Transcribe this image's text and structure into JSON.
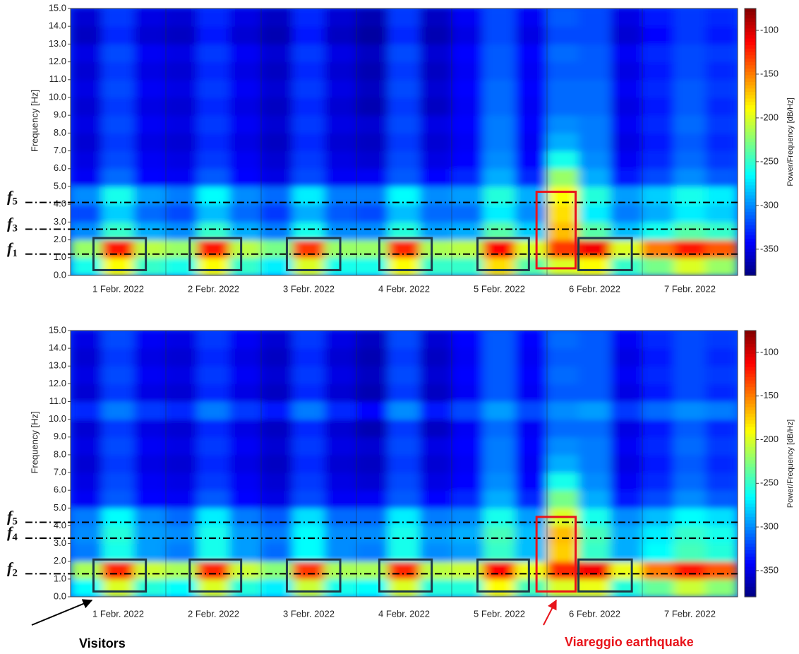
{
  "chart_data": [
    {
      "type": "heatmap",
      "colormap": "jet",
      "categories": [
        "1 Febr. 2022",
        "2 Febr. 2022",
        "3 Febr. 2022",
        "4 Febr. 2022",
        "5 Febr. 2022",
        "6 Febr. 2022",
        "7 Febr. 2022"
      ],
      "xlim": [
        0,
        7
      ],
      "ylabel": "Frequency [Hz]",
      "ylim": [
        0,
        15
      ],
      "yticks": [
        {
          "value": 0,
          "label": "0.0"
        },
        {
          "value": 1,
          "label": "1.0"
        },
        {
          "value": 2,
          "label": "2.0"
        },
        {
          "value": 3,
          "label": "3.0"
        },
        {
          "value": 4,
          "label": "4.0"
        },
        {
          "value": 5,
          "label": "5.0"
        },
        {
          "value": 6,
          "label": "6.0"
        },
        {
          "value": 7,
          "label": "7.0"
        },
        {
          "value": 8,
          "label": "8.0"
        },
        {
          "value": 9,
          "label": "9.0"
        },
        {
          "value": 10,
          "label": "10.0"
        },
        {
          "value": 11,
          "label": "11.0"
        },
        {
          "value": 12,
          "label": "12.0"
        },
        {
          "value": 13,
          "label": "13.0"
        },
        {
          "value": 14,
          "label": "14.0"
        },
        {
          "value": 15,
          "label": "15.0"
        }
      ],
      "colorbar_label": "Power/Frequency [dB/Hz]",
      "clim": [
        -380,
        -75
      ],
      "cticks": [
        -100,
        -150,
        -200,
        -250,
        -300,
        -350
      ],
      "z": [
        [
          -260,
          -190,
          -250,
          -260,
          -190,
          -250,
          -270,
          -200,
          -260,
          -260,
          -190,
          -250,
          -250,
          -180,
          -240,
          -200,
          -190,
          -250,
          -230,
          -200,
          -220
        ],
        [
          -220,
          -120,
          -210,
          -220,
          -120,
          -210,
          -230,
          -130,
          -220,
          -220,
          -125,
          -215,
          -210,
          -115,
          -200,
          -130,
          -110,
          -200,
          -150,
          -120,
          -140
        ],
        [
          -300,
          -250,
          -290,
          -300,
          -250,
          -290,
          -305,
          -260,
          -300,
          -300,
          -255,
          -295,
          -290,
          -240,
          -280,
          -170,
          -240,
          -285,
          -260,
          -240,
          -250
        ],
        [
          -320,
          -280,
          -310,
          -320,
          -285,
          -310,
          -325,
          -290,
          -315,
          -320,
          -285,
          -310,
          -310,
          -270,
          -300,
          -180,
          -270,
          -305,
          -290,
          -270,
          -280
        ],
        [
          -300,
          -260,
          -295,
          -305,
          -265,
          -300,
          -310,
          -270,
          -305,
          -305,
          -265,
          -300,
          -295,
          -255,
          -290,
          -190,
          -255,
          -295,
          -280,
          -260,
          -270
        ],
        [
          -345,
          -310,
          -340,
          -345,
          -315,
          -340,
          -350,
          -320,
          -345,
          -345,
          -315,
          -340,
          -330,
          -290,
          -330,
          -220,
          -290,
          -335,
          -320,
          -300,
          -315
        ],
        [
          -350,
          -320,
          -345,
          -350,
          -325,
          -345,
          -355,
          -325,
          -350,
          -355,
          -320,
          -350,
          -340,
          -300,
          -340,
          -260,
          -300,
          -345,
          -330,
          -310,
          -325
        ],
        [
          -355,
          -325,
          -350,
          -355,
          -330,
          -350,
          -360,
          -330,
          -355,
          -360,
          -325,
          -355,
          -345,
          -305,
          -345,
          -290,
          -305,
          -350,
          -335,
          -315,
          -330
        ],
        [
          -350,
          -320,
          -345,
          -350,
          -325,
          -345,
          -355,
          -325,
          -350,
          -355,
          -320,
          -350,
          -340,
          -305,
          -340,
          -300,
          -305,
          -345,
          -330,
          -310,
          -325
        ],
        [
          -355,
          -325,
          -350,
          -355,
          -330,
          -350,
          -360,
          -330,
          -355,
          -365,
          -325,
          -360,
          -345,
          -310,
          -345,
          -310,
          -310,
          -350,
          -335,
          -315,
          -330
        ],
        [
          -350,
          -320,
          -345,
          -350,
          -325,
          -345,
          -355,
          -325,
          -350,
          -360,
          -320,
          -355,
          -340,
          -310,
          -340,
          -310,
          -310,
          -345,
          -330,
          -315,
          -325
        ],
        [
          -355,
          -325,
          -350,
          -355,
          -330,
          -350,
          -360,
          -330,
          -355,
          -365,
          -325,
          -360,
          -345,
          -315,
          -345,
          -315,
          -315,
          -350,
          -335,
          -320,
          -330
        ],
        [
          -350,
          -320,
          -345,
          -350,
          -325,
          -345,
          -355,
          -325,
          -350,
          -360,
          -320,
          -355,
          -340,
          -315,
          -340,
          -310,
          -315,
          -345,
          -330,
          -320,
          -325
        ],
        [
          -360,
          -330,
          -355,
          -360,
          -335,
          -355,
          -365,
          -335,
          -360,
          -370,
          -330,
          -365,
          -350,
          -320,
          -350,
          -320,
          -320,
          -355,
          -340,
          -325,
          -335
        ],
        [
          -355,
          -325,
          -350,
          -355,
          -330,
          -350,
          -360,
          -330,
          -355,
          -365,
          -325,
          -360,
          -345,
          -320,
          -345,
          -315,
          -320,
          -350,
          -335,
          -325,
          -330
        ]
      ],
      "lines": [
        {
          "label": "f",
          "sub": "5",
          "value": 4.1
        },
        {
          "label": "f",
          "sub": "3",
          "value": 2.6
        },
        {
          "label": "f",
          "sub": "1",
          "value": 1.2
        }
      ],
      "boxes": [
        {
          "x": [
            0.24,
            0.79
          ],
          "y": [
            0.3,
            2.1
          ],
          "color": "#1d3a4a"
        },
        {
          "x": [
            1.25,
            1.79
          ],
          "y": [
            0.3,
            2.1
          ],
          "color": "#1d3a4a"
        },
        {
          "x": [
            2.27,
            2.83
          ],
          "y": [
            0.3,
            2.1
          ],
          "color": "#1d3a4a"
        },
        {
          "x": [
            3.24,
            3.79
          ],
          "y": [
            0.3,
            2.1
          ],
          "color": "#1d3a4a"
        },
        {
          "x": [
            4.27,
            4.81
          ],
          "y": [
            0.3,
            2.1
          ],
          "color": "#1d3a4a"
        },
        {
          "x": [
            5.33,
            5.89
          ],
          "y": [
            0.3,
            2.1
          ],
          "color": "#1d3a4a"
        },
        {
          "x": [
            4.89,
            5.3
          ],
          "y": [
            0.4,
            4.7
          ],
          "color": "#e8141b"
        }
      ]
    },
    {
      "type": "heatmap",
      "colormap": "jet",
      "categories": [
        "1 Febr. 2022",
        "2 Febr. 2022",
        "3 Febr. 2022",
        "4 Febr. 2022",
        "5 Febr. 2022",
        "6 Febr. 2022",
        "7 Febr. 2022"
      ],
      "xlim": [
        0,
        7
      ],
      "ylabel": "Frequency [Hz]",
      "ylim": [
        0,
        15
      ],
      "yticks": [
        {
          "value": 0,
          "label": "0.0"
        },
        {
          "value": 1,
          "label": "1.0"
        },
        {
          "value": 2,
          "label": "2.0"
        },
        {
          "value": 3,
          "label": "3.0"
        },
        {
          "value": 4,
          "label": "4.0"
        },
        {
          "value": 5,
          "label": "5.0"
        },
        {
          "value": 6,
          "label": "6.0"
        },
        {
          "value": 7,
          "label": "7.0"
        },
        {
          "value": 8,
          "label": "8.0"
        },
        {
          "value": 9,
          "label": "9.0"
        },
        {
          "value": 10,
          "label": "10.0"
        },
        {
          "value": 11,
          "label": "11.0"
        },
        {
          "value": 12,
          "label": "12.0"
        },
        {
          "value": 13,
          "label": "13.0"
        },
        {
          "value": 14,
          "label": "14.0"
        },
        {
          "value": 15,
          "label": "15.0"
        }
      ],
      "colorbar_label": "Power/Frequency [dB/Hz]",
      "clim": [
        -380,
        -75
      ],
      "cticks": [
        -100,
        -150,
        -200,
        -250,
        -300,
        -350
      ],
      "z": [
        [
          -265,
          -200,
          -255,
          -265,
          -200,
          -255,
          -270,
          -205,
          -260,
          -265,
          -200,
          -255,
          -255,
          -190,
          -245,
          -200,
          -195,
          -255,
          -235,
          -205,
          -225
        ],
        [
          -215,
          -125,
          -205,
          -215,
          -125,
          -205,
          -225,
          -130,
          -215,
          -215,
          -125,
          -210,
          -205,
          -115,
          -195,
          -125,
          -110,
          -195,
          -150,
          -120,
          -140
        ],
        [
          -305,
          -260,
          -295,
          -305,
          -260,
          -295,
          -310,
          -265,
          -300,
          -305,
          -260,
          -300,
          -295,
          -250,
          -285,
          -175,
          -250,
          -290,
          -265,
          -245,
          -255
        ],
        [
          -300,
          -255,
          -295,
          -300,
          -260,
          -295,
          -305,
          -265,
          -300,
          -300,
          -260,
          -295,
          -290,
          -245,
          -285,
          -170,
          -245,
          -290,
          -270,
          -250,
          -260
        ],
        [
          -305,
          -265,
          -300,
          -310,
          -270,
          -305,
          -315,
          -275,
          -310,
          -310,
          -270,
          -305,
          -300,
          -260,
          -295,
          -200,
          -260,
          -300,
          -285,
          -265,
          -275
        ],
        [
          -345,
          -315,
          -340,
          -345,
          -315,
          -340,
          -350,
          -320,
          -345,
          -345,
          -315,
          -340,
          -330,
          -290,
          -330,
          -230,
          -290,
          -335,
          -320,
          -300,
          -315
        ],
        [
          -350,
          -320,
          -345,
          -350,
          -325,
          -345,
          -355,
          -325,
          -350,
          -355,
          -320,
          -350,
          -340,
          -300,
          -340,
          -260,
          -300,
          -345,
          -330,
          -310,
          -325
        ],
        [
          -355,
          -325,
          -350,
          -355,
          -330,
          -350,
          -360,
          -330,
          -355,
          -360,
          -325,
          -355,
          -345,
          -305,
          -345,
          -290,
          -305,
          -350,
          -335,
          -315,
          -330
        ],
        [
          -350,
          -320,
          -345,
          -350,
          -325,
          -345,
          -355,
          -325,
          -350,
          -355,
          -320,
          -350,
          -340,
          -305,
          -340,
          -300,
          -305,
          -345,
          -330,
          -310,
          -325
        ],
        [
          -355,
          -325,
          -350,
          -355,
          -330,
          -350,
          -360,
          -330,
          -355,
          -365,
          -325,
          -360,
          -345,
          -310,
          -345,
          -310,
          -310,
          -350,
          -335,
          -315,
          -330
        ],
        [
          -330,
          -305,
          -325,
          -330,
          -305,
          -325,
          -335,
          -305,
          -330,
          -340,
          -300,
          -335,
          -320,
          -295,
          -320,
          -300,
          -295,
          -325,
          -310,
          -300,
          -305
        ],
        [
          -355,
          -325,
          -350,
          -355,
          -330,
          -350,
          -360,
          -330,
          -355,
          -365,
          -325,
          -360,
          -345,
          -315,
          -345,
          -315,
          -315,
          -350,
          -335,
          -320,
          -330
        ],
        [
          -350,
          -320,
          -345,
          -350,
          -325,
          -345,
          -355,
          -325,
          -350,
          -360,
          -320,
          -355,
          -340,
          -315,
          -340,
          -310,
          -315,
          -345,
          -330,
          -320,
          -325
        ],
        [
          -355,
          -325,
          -350,
          -355,
          -330,
          -350,
          -360,
          -330,
          -355,
          -365,
          -325,
          -360,
          -345,
          -315,
          -345,
          -315,
          -315,
          -350,
          -335,
          -320,
          -330
        ],
        [
          -350,
          -320,
          -345,
          -350,
          -325,
          -345,
          -355,
          -325,
          -350,
          -360,
          -320,
          -355,
          -340,
          -315,
          -340,
          -310,
          -315,
          -345,
          -330,
          -320,
          -325
        ]
      ],
      "lines": [
        {
          "label": "f",
          "sub": "5",
          "value": 4.2
        },
        {
          "label": "f",
          "sub": "4",
          "value": 3.3
        },
        {
          "label": "f",
          "sub": "2",
          "value": 1.3
        }
      ],
      "boxes": [
        {
          "x": [
            0.24,
            0.79
          ],
          "y": [
            0.3,
            2.1
          ],
          "color": "#1d3a4a"
        },
        {
          "x": [
            1.25,
            1.79
          ],
          "y": [
            0.3,
            2.1
          ],
          "color": "#1d3a4a"
        },
        {
          "x": [
            2.27,
            2.83
          ],
          "y": [
            0.3,
            2.1
          ],
          "color": "#1d3a4a"
        },
        {
          "x": [
            3.24,
            3.79
          ],
          "y": [
            0.3,
            2.1
          ],
          "color": "#1d3a4a"
        },
        {
          "x": [
            4.27,
            4.81
          ],
          "y": [
            0.3,
            2.1
          ],
          "color": "#1d3a4a"
        },
        {
          "x": [
            5.33,
            5.89
          ],
          "y": [
            0.3,
            2.1
          ],
          "color": "#1d3a4a"
        },
        {
          "x": [
            4.89,
            5.3
          ],
          "y": [
            0.3,
            4.5
          ],
          "color": "#e8141b"
        }
      ],
      "annotations": [
        {
          "text": "Visitors",
          "color": "#000000"
        },
        {
          "text": "Viareggio earthquake",
          "color": "#e8141b"
        }
      ]
    }
  ]
}
